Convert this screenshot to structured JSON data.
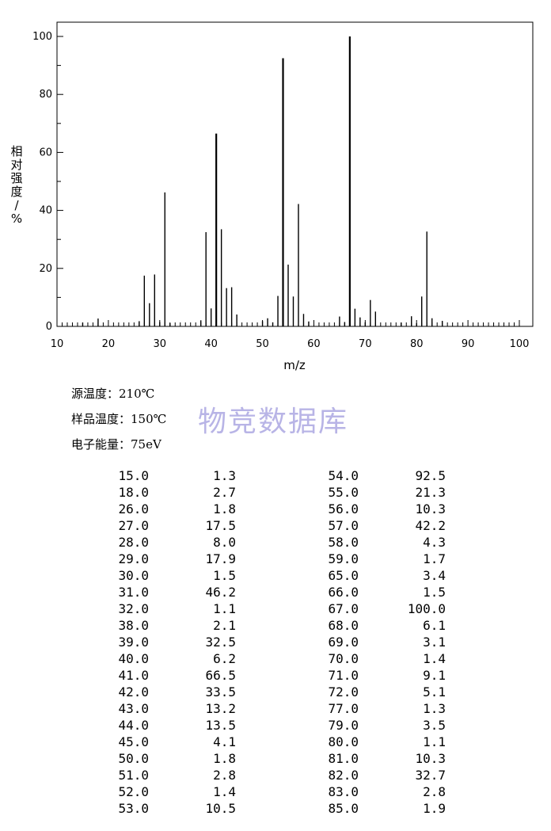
{
  "chart_data": {
    "type": "bar",
    "xlabel": "m/z",
    "ylabel": "相对强度/%",
    "xlim": [
      10,
      100
    ],
    "ylim": [
      0,
      100
    ],
    "xticks": [
      10,
      20,
      30,
      40,
      50,
      60,
      70,
      80,
      90,
      100
    ],
    "yticks": [
      0,
      20,
      40,
      60,
      80,
      100
    ],
    "x": [
      15,
      18,
      26,
      27,
      28,
      29,
      30,
      31,
      32,
      38,
      39,
      40,
      41,
      42,
      43,
      44,
      45,
      50,
      51,
      52,
      53,
      54,
      55,
      56,
      57,
      58,
      59,
      65,
      66,
      67,
      68,
      69,
      70,
      71,
      72,
      77,
      79,
      80,
      81,
      82,
      83,
      85
    ],
    "values": [
      1.3,
      2.7,
      1.8,
      17.5,
      8.0,
      17.9,
      1.5,
      46.2,
      1.1,
      2.1,
      32.5,
      6.2,
      66.5,
      33.5,
      13.2,
      13.5,
      4.1,
      1.8,
      2.8,
      1.4,
      10.5,
      92.5,
      21.3,
      10.3,
      42.2,
      4.3,
      1.7,
      3.4,
      1.5,
      100.0,
      6.1,
      3.1,
      1.4,
      9.1,
      5.1,
      1.3,
      3.5,
      1.1,
      10.3,
      32.7,
      2.8,
      1.9
    ]
  },
  "conditions": {
    "source_temp": "源温度：210℃",
    "sample_temp": "样品温度：150℃",
    "electron_energy": "电子能量：75eV"
  },
  "watermark": "物竞数据库",
  "table": {
    "left": [
      [
        "15.0",
        "1.3"
      ],
      [
        "18.0",
        "2.7"
      ],
      [
        "26.0",
        "1.8"
      ],
      [
        "27.0",
        "17.5"
      ],
      [
        "28.0",
        "8.0"
      ],
      [
        "29.0",
        "17.9"
      ],
      [
        "30.0",
        "1.5"
      ],
      [
        "31.0",
        "46.2"
      ],
      [
        "32.0",
        "1.1"
      ],
      [
        "38.0",
        "2.1"
      ],
      [
        "39.0",
        "32.5"
      ],
      [
        "40.0",
        "6.2"
      ],
      [
        "41.0",
        "66.5"
      ],
      [
        "42.0",
        "33.5"
      ],
      [
        "43.0",
        "13.2"
      ],
      [
        "44.0",
        "13.5"
      ],
      [
        "45.0",
        "4.1"
      ],
      [
        "50.0",
        "1.8"
      ],
      [
        "51.0",
        "2.8"
      ],
      [
        "52.0",
        "1.4"
      ],
      [
        "53.0",
        "10.5"
      ]
    ],
    "right": [
      [
        "54.0",
        "92.5"
      ],
      [
        "55.0",
        "21.3"
      ],
      [
        "56.0",
        "10.3"
      ],
      [
        "57.0",
        "42.2"
      ],
      [
        "58.0",
        "4.3"
      ],
      [
        "59.0",
        "1.7"
      ],
      [
        "65.0",
        "3.4"
      ],
      [
        "66.0",
        "1.5"
      ],
      [
        "67.0",
        "100.0"
      ],
      [
        "68.0",
        "6.1"
      ],
      [
        "69.0",
        "3.1"
      ],
      [
        "70.0",
        "1.4"
      ],
      [
        "71.0",
        "9.1"
      ],
      [
        "72.0",
        "5.1"
      ],
      [
        "77.0",
        "1.3"
      ],
      [
        "79.0",
        "3.5"
      ],
      [
        "80.0",
        "1.1"
      ],
      [
        "81.0",
        "10.3"
      ],
      [
        "82.0",
        "32.7"
      ],
      [
        "83.0",
        "2.8"
      ],
      [
        "85.0",
        "1.9"
      ]
    ]
  }
}
